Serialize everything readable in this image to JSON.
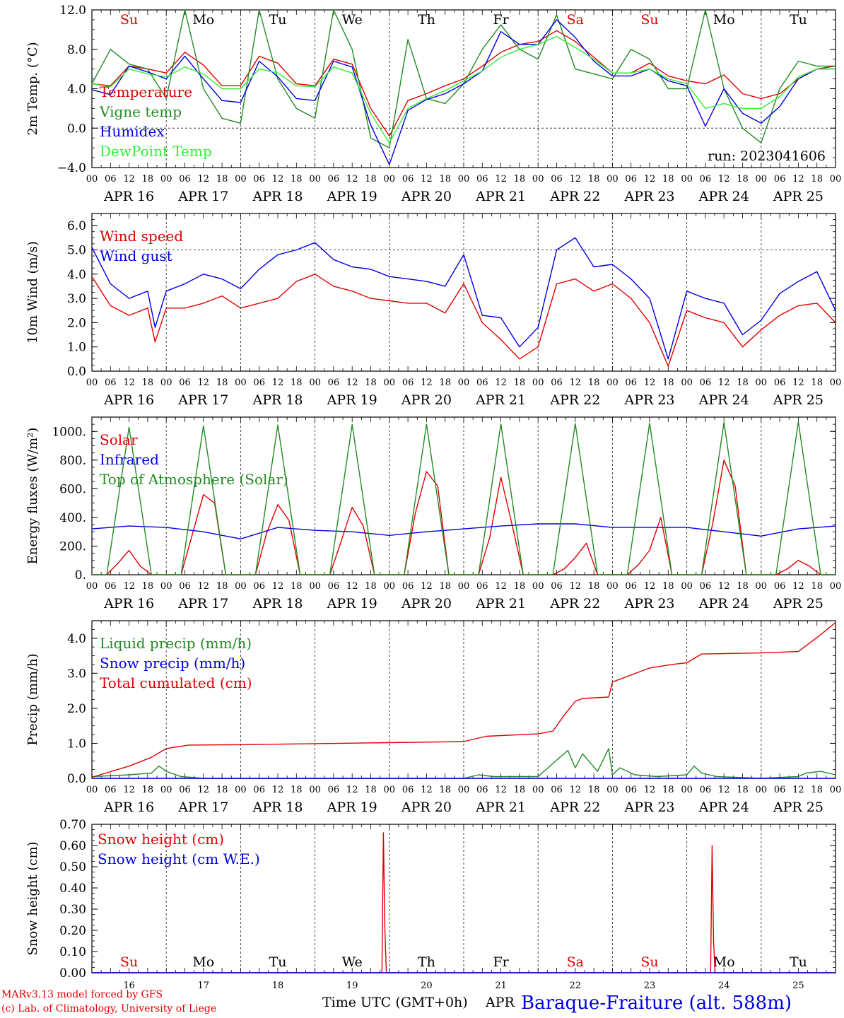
{
  "footer": {
    "credit_1": "MARv3.13 model forced by GFS",
    "credit_2": "(c) Lab. of Climatology, University of Liege",
    "time_label": "Time UTC (GMT+0h)",
    "month_label": "APR",
    "station": "Baraque-Fraiture (alt. 588m)"
  },
  "colors": {
    "red": "#e00000",
    "darkgreen": "#228b22",
    "blue": "#0000e0",
    "lightgreen": "#33ee33",
    "axis": "#000000"
  },
  "x_axis": {
    "hour_ticks": [
      "00",
      "06",
      "12",
      "18"
    ],
    "date_labels": [
      "APR 16",
      "APR 17",
      "APR 18",
      "APR 19",
      "APR 20",
      "APR 21",
      "APR 22",
      "APR 23",
      "APR 24",
      "APR 25"
    ],
    "day_numbers": [
      "16",
      "17",
      "18",
      "19",
      "20",
      "21",
      "22",
      "23",
      "24",
      "25"
    ],
    "weekdays": [
      "Su",
      "Mo",
      "Tu",
      "We",
      "Th",
      "Fr",
      "Sa",
      "Su",
      "Mo",
      "Tu"
    ],
    "weekend_color_indices": [
      0,
      6,
      7
    ],
    "range_days": [
      0,
      10
    ]
  },
  "chart_data": [
    {
      "type": "line",
      "ylabel": "2m Temp. (°C)",
      "ylim": [
        -4.0,
        12.0
      ],
      "yticks": [
        "−4.0",
        "0.0",
        "4.0",
        "8.0",
        "12.0"
      ],
      "ytick_values": [
        -4,
        0,
        4,
        8,
        12
      ],
      "reference_line": 0.0,
      "annotation": "run: 2023041606",
      "series": [
        {
          "name": "Temperature",
          "color": "red",
          "x": [
            0,
            0.25,
            0.5,
            0.75,
            1,
            1.25,
            1.5,
            1.75,
            2,
            2.25,
            2.5,
            2.75,
            3,
            3.25,
            3.5,
            3.75,
            4,
            4.25,
            4.5,
            4.75,
            5,
            5.25,
            5.5,
            5.75,
            6,
            6.25,
            6.5,
            6.75,
            7,
            7.25,
            7.5,
            7.75,
            8,
            8.25,
            8.5,
            8.75,
            9,
            9.25,
            9.5,
            9.75,
            10
          ],
          "y": [
            4.5,
            4.3,
            6.3,
            6.0,
            5.6,
            7.7,
            6.4,
            4.3,
            4.3,
            7.3,
            6.6,
            4.5,
            4.3,
            7.0,
            6.5,
            2.0,
            -0.8,
            2.8,
            3.5,
            4.3,
            5.0,
            6.3,
            7.7,
            8.5,
            8.8,
            9.9,
            8.8,
            7.2,
            5.6,
            5.6,
            6.6,
            5.3,
            4.8,
            4.5,
            5.4,
            3.5,
            3.0,
            3.5,
            5.0,
            6.0,
            6.3
          ]
        },
        {
          "name": "Vigne temp",
          "color": "darkgreen",
          "x": [
            0,
            0.25,
            0.5,
            0.75,
            1,
            1.25,
            1.5,
            1.75,
            2,
            2.25,
            2.5,
            2.75,
            3,
            3.25,
            3.5,
            3.75,
            4,
            4.25,
            4.5,
            4.75,
            5,
            5.25,
            5.5,
            5.75,
            6,
            6.25,
            6.5,
            6.75,
            7,
            7.25,
            7.5,
            7.75,
            8,
            8.25,
            8.5,
            8.75,
            9,
            9.25,
            9.5,
            9.75,
            10
          ],
          "y": [
            4.5,
            8.0,
            6.5,
            6.0,
            3.0,
            12.0,
            4.0,
            1.0,
            0.5,
            12.0,
            5.0,
            2.0,
            1.0,
            12.0,
            8.0,
            -1.0,
            -2.0,
            9.0,
            3.0,
            2.5,
            4.5,
            8.0,
            10.5,
            8.0,
            7.0,
            11.5,
            6.0,
            5.5,
            5.0,
            8.0,
            7.0,
            4.0,
            4.0,
            12.0,
            4.0,
            0.0,
            -1.5,
            4.0,
            6.8,
            6.3,
            6.3
          ]
        },
        {
          "name": "Humidex",
          "color": "blue",
          "x": [
            0,
            0.25,
            0.5,
            0.75,
            1,
            1.25,
            1.5,
            1.75,
            2,
            2.25,
            2.5,
            2.75,
            3,
            3.25,
            3.5,
            3.75,
            4,
            4.25,
            4.5,
            4.75,
            5,
            5.25,
            5.5,
            5.75,
            6,
            6.25,
            6.5,
            6.75,
            7,
            7.25,
            7.5,
            7.75,
            8,
            8.25,
            8.5,
            8.75,
            9,
            9.25,
            9.5,
            9.75,
            10
          ],
          "y": [
            3.9,
            3.4,
            6.3,
            5.7,
            5.0,
            7.3,
            5.0,
            2.8,
            2.6,
            6.8,
            5.2,
            3.0,
            2.8,
            6.8,
            6.2,
            0.3,
            -3.7,
            1.8,
            2.9,
            3.5,
            4.5,
            5.8,
            9.8,
            8.5,
            8.5,
            11.0,
            9.2,
            6.8,
            5.3,
            5.3,
            6.0,
            4.8,
            4.3,
            0.2,
            4.0,
            1.5,
            0.5,
            2.2,
            5.0,
            6.0,
            6.0
          ]
        },
        {
          "name": "DewPoint Temp",
          "color": "lightgreen",
          "x": [
            0,
            0.25,
            0.5,
            0.75,
            1,
            1.25,
            1.5,
            1.75,
            2,
            2.25,
            2.5,
            2.75,
            3,
            3.25,
            3.5,
            3.75,
            4,
            4.25,
            4.5,
            4.75,
            5,
            5.25,
            5.5,
            5.75,
            6,
            6.25,
            6.5,
            6.75,
            7,
            7.25,
            7.5,
            7.75,
            8,
            8.25,
            8.5,
            8.75,
            9,
            9.25,
            9.5,
            9.75,
            10
          ],
          "y": [
            4.5,
            4.2,
            6.0,
            5.5,
            5.2,
            6.2,
            5.5,
            4.0,
            4.0,
            6.0,
            5.6,
            4.3,
            4.2,
            6.2,
            5.6,
            1.5,
            -1.5,
            2.0,
            3.0,
            3.8,
            4.8,
            5.8,
            7.2,
            8.0,
            8.5,
            9.3,
            8.2,
            7.0,
            5.6,
            5.6,
            6.0,
            5.0,
            4.5,
            2.0,
            2.5,
            2.0,
            2.0,
            3.2,
            5.2,
            6.0,
            6.0
          ]
        }
      ]
    },
    {
      "type": "line",
      "ylabel": "10m Wind (m/s)",
      "ylim": [
        0.0,
        6.5
      ],
      "yticks": [
        "0.0",
        "1.0",
        "2.0",
        "3.0",
        "4.0",
        "5.0",
        "6.0"
      ],
      "ytick_values": [
        0,
        1,
        2,
        3,
        4,
        5,
        6
      ],
      "reference_line": 5.0,
      "series": [
        {
          "name": "Wind speed",
          "color": "red",
          "x": [
            0,
            0.25,
            0.5,
            0.75,
            0.85,
            1,
            1.25,
            1.5,
            1.75,
            2,
            2.25,
            2.5,
            2.75,
            3,
            3.25,
            3.5,
            3.75,
            4,
            4.25,
            4.5,
            4.75,
            5,
            5.25,
            5.5,
            5.75,
            6,
            6.25,
            6.5,
            6.75,
            7,
            7.25,
            7.5,
            7.75,
            8,
            8.25,
            8.5,
            8.75,
            9,
            9.25,
            9.5,
            9.75,
            10
          ],
          "y": [
            3.9,
            2.7,
            2.3,
            2.6,
            1.2,
            2.6,
            2.6,
            2.8,
            3.1,
            2.6,
            2.8,
            3.0,
            3.7,
            4.0,
            3.5,
            3.3,
            3.0,
            2.9,
            2.8,
            2.8,
            2.4,
            3.6,
            2.0,
            1.3,
            0.5,
            1.0,
            3.6,
            3.8,
            3.3,
            3.6,
            3.0,
            2.0,
            0.2,
            2.5,
            2.2,
            2.0,
            1.0,
            1.7,
            2.3,
            2.7,
            2.8,
            2.0
          ]
        },
        {
          "name": "Wind gust",
          "color": "blue",
          "x": [
            0,
            0.25,
            0.5,
            0.75,
            0.85,
            1,
            1.25,
            1.5,
            1.75,
            2,
            2.25,
            2.5,
            2.75,
            3,
            3.25,
            3.5,
            3.75,
            4,
            4.25,
            4.5,
            4.75,
            5,
            5.25,
            5.5,
            5.75,
            6,
            6.25,
            6.5,
            6.75,
            7,
            7.25,
            7.5,
            7.75,
            8,
            8.25,
            8.5,
            8.75,
            9,
            9.25,
            9.5,
            9.75,
            10
          ],
          "y": [
            5.1,
            3.6,
            3.0,
            3.3,
            1.8,
            3.3,
            3.6,
            4.0,
            3.8,
            3.4,
            4.2,
            4.8,
            5.0,
            5.3,
            4.6,
            4.3,
            4.2,
            3.9,
            3.8,
            3.7,
            3.5,
            4.8,
            2.3,
            2.2,
            1.0,
            1.8,
            5.0,
            5.5,
            4.3,
            4.4,
            3.8,
            3.0,
            0.5,
            3.3,
            3.0,
            2.8,
            1.5,
            2.1,
            3.2,
            3.7,
            4.1,
            2.5
          ]
        }
      ]
    },
    {
      "type": "line",
      "ylabel": "Energy fluxes (W/m²)",
      "ylim": [
        0,
        1100
      ],
      "yticks": [
        "0.",
        "200.",
        "400.",
        "600.",
        "800.",
        "1000."
      ],
      "ytick_values": [
        0,
        200,
        400,
        600,
        800,
        1000
      ],
      "series": [
        {
          "name": "Solar",
          "color": "red",
          "x": [
            0,
            0.2,
            0.35,
            0.5,
            0.65,
            0.8,
            1.0,
            1.2,
            1.35,
            1.5,
            1.65,
            1.8,
            2.0,
            2.2,
            2.35,
            2.5,
            2.65,
            2.8,
            3.0,
            3.2,
            3.35,
            3.5,
            3.65,
            3.8,
            4.0,
            4.2,
            4.35,
            4.5,
            4.65,
            4.8,
            5.0,
            5.2,
            5.35,
            5.5,
            5.65,
            5.8,
            6.0,
            6.2,
            6.35,
            6.5,
            6.65,
            6.8,
            7.0,
            7.2,
            7.35,
            7.5,
            7.65,
            7.8,
            8.0,
            8.2,
            8.35,
            8.5,
            8.65,
            8.8,
            9.0,
            9.2,
            9.35,
            9.5,
            9.65,
            9.8,
            10
          ],
          "y": [
            0,
            0,
            80,
            170,
            60,
            0,
            0,
            0,
            280,
            560,
            500,
            0,
            0,
            0,
            290,
            490,
            380,
            0,
            0,
            0,
            230,
            470,
            340,
            0,
            0,
            0,
            430,
            720,
            620,
            0,
            0,
            0,
            260,
            680,
            350,
            0,
            0,
            0,
            40,
            120,
            220,
            0,
            0,
            0,
            70,
            170,
            400,
            0,
            0,
            0,
            360,
            800,
            620,
            0,
            0,
            0,
            40,
            100,
            60,
            0,
            0
          ]
        },
        {
          "name": "Infrared",
          "color": "blue",
          "x": [
            0,
            0.5,
            1,
            1.5,
            2,
            2.5,
            3,
            3.5,
            4,
            4.5,
            5,
            5.5,
            6,
            6.5,
            7,
            7.5,
            8,
            8.5,
            9,
            9.5,
            10
          ],
          "y": [
            320,
            340,
            330,
            300,
            250,
            330,
            310,
            300,
            275,
            300,
            320,
            340,
            355,
            355,
            330,
            330,
            330,
            300,
            270,
            320,
            340
          ]
        },
        {
          "name": "Top of Atmosphere (Solar)",
          "color": "darkgreen",
          "x": [
            0,
            0.2,
            0.5,
            0.8,
            1,
            1.2,
            1.5,
            1.8,
            2,
            2.2,
            2.5,
            2.8,
            3,
            3.2,
            3.5,
            3.8,
            4,
            4.2,
            4.5,
            4.8,
            5,
            5.2,
            5.5,
            5.8,
            6,
            6.2,
            6.5,
            6.8,
            7,
            7.2,
            7.5,
            7.8,
            8,
            8.2,
            8.5,
            8.8,
            9,
            9.2,
            9.5,
            9.8,
            10
          ],
          "y": [
            0,
            0,
            1030,
            0,
            0,
            0,
            1040,
            0,
            0,
            0,
            1045,
            0,
            0,
            0,
            1048,
            0,
            0,
            0,
            1050,
            0,
            0,
            0,
            1052,
            0,
            0,
            0,
            1055,
            0,
            0,
            0,
            1058,
            0,
            0,
            0,
            1062,
            0,
            0,
            0,
            1068,
            0,
            0
          ]
        }
      ]
    },
    {
      "type": "line",
      "ylabel": "Precip (mm/h)",
      "ylim": [
        0.0,
        4.5
      ],
      "yticks": [
        "0.0",
        "1.0",
        "2.0",
        "3.0",
        "4.0"
      ],
      "ytick_values": [
        0,
        1,
        2,
        3,
        4
      ],
      "series": [
        {
          "name": "Liquid precip (mm/h)",
          "color": "darkgreen",
          "x": [
            0,
            0.5,
            0.8,
            0.9,
            1.0,
            1.2,
            1.5,
            5.0,
            5.2,
            5.4,
            6.0,
            6.4,
            6.5,
            6.6,
            6.8,
            6.95,
            7.0,
            7.1,
            7.3,
            7.6,
            8.0,
            8.1,
            8.2,
            8.4,
            9.0,
            9.5,
            9.6,
            9.8,
            10
          ],
          "y": [
            0.05,
            0.1,
            0.15,
            0.35,
            0.2,
            0.05,
            0.0,
            0.0,
            0.1,
            0.05,
            0.05,
            0.8,
            0.3,
            0.7,
            0.2,
            0.85,
            0.1,
            0.3,
            0.1,
            0.05,
            0.1,
            0.35,
            0.15,
            0.05,
            0.0,
            0.05,
            0.15,
            0.2,
            0.1
          ]
        },
        {
          "name": "Snow precip (mm/h)",
          "color": "blue",
          "x": [
            0,
            10
          ],
          "y": [
            0,
            0
          ]
        },
        {
          "name": "Total cumulated (cm)",
          "color": "red",
          "x": [
            0,
            0.5,
            0.8,
            1.0,
            1.3,
            2.0,
            3.0,
            4.0,
            5.0,
            5.3,
            6.0,
            6.2,
            6.35,
            6.5,
            6.6,
            6.95,
            7.0,
            7.5,
            7.8,
            8.0,
            8.2,
            9.0,
            9.5,
            9.8,
            10
          ],
          "y": [
            0.03,
            0.35,
            0.6,
            0.85,
            0.95,
            0.96,
            0.99,
            1.02,
            1.05,
            1.2,
            1.27,
            1.35,
            1.8,
            2.2,
            2.28,
            2.32,
            2.75,
            3.15,
            3.25,
            3.3,
            3.55,
            3.58,
            3.62,
            4.1,
            4.45
          ]
        }
      ]
    },
    {
      "type": "line",
      "ylabel": "Snow height (cm)",
      "ylim": [
        0.0,
        0.7
      ],
      "yticks": [
        "0.00",
        "0.10",
        "0.20",
        "0.30",
        "0.40",
        "0.50",
        "0.60",
        "0.70"
      ],
      "ytick_values": [
        0,
        0.1,
        0.2,
        0.3,
        0.4,
        0.5,
        0.6,
        0.7
      ],
      "series": [
        {
          "name": "Snow height (cm)",
          "color": "red",
          "x": [
            0,
            3.9,
            3.92,
            3.94,
            3.96,
            8.32,
            8.34,
            8.36,
            8.38,
            10
          ],
          "y": [
            0,
            0,
            0.66,
            0.2,
            0,
            0,
            0.6,
            0.15,
            0,
            0
          ]
        },
        {
          "name": "Snow height (cm W.E.)",
          "color": "blue",
          "x": [
            0,
            10
          ],
          "y": [
            0,
            0
          ]
        }
      ]
    }
  ]
}
